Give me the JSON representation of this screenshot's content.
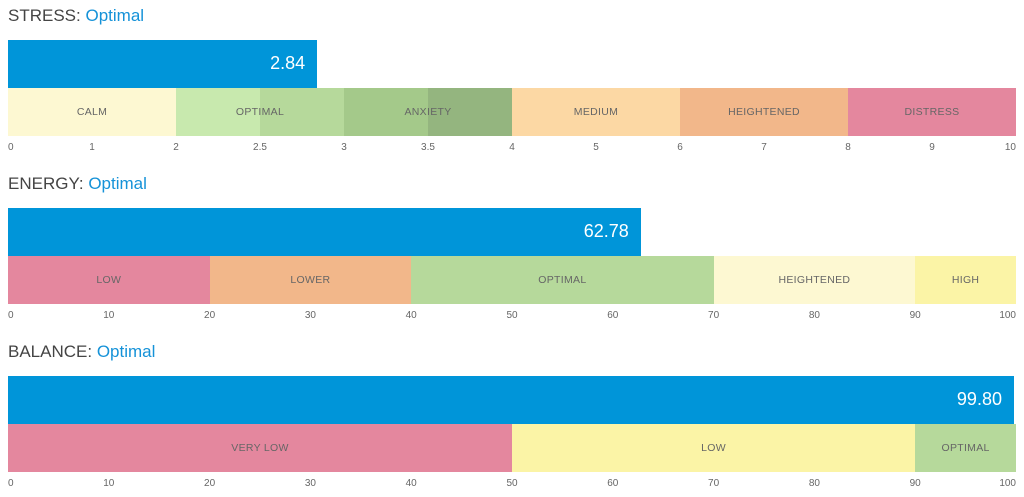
{
  "chart_data": [
    {
      "type": "bar",
      "title": "STRESS",
      "status": "Optimal",
      "value": 2.84,
      "value_label": "2.84",
      "axis_type": "piecewise-linear",
      "ticks": [
        {
          "v": 0,
          "label": "0"
        },
        {
          "v": 1,
          "label": "1"
        },
        {
          "v": 2,
          "label": "2"
        },
        {
          "v": 2.5,
          "label": "2.5"
        },
        {
          "v": 3,
          "label": "3"
        },
        {
          "v": 3.5,
          "label": "3.5"
        },
        {
          "v": 4,
          "label": "4"
        },
        {
          "v": 5,
          "label": "5"
        },
        {
          "v": 6,
          "label": "6"
        },
        {
          "v": 7,
          "label": "7"
        },
        {
          "v": 8,
          "label": "8"
        },
        {
          "v": 9,
          "label": "9"
        },
        {
          "v": 10,
          "label": "10"
        }
      ],
      "zones": [
        {
          "label": "CALM",
          "from": 0,
          "to": 2,
          "color": "#fdf8d2"
        },
        {
          "label": "OPTIMAL",
          "from": 2,
          "to": 3,
          "color": "#c8e9ae",
          "color2": "#b6d99b"
        },
        {
          "label": "ANXIETY",
          "from": 3,
          "to": 4,
          "color": "#a4c98a",
          "color2": "#94b57f"
        },
        {
          "label": "MEDIUM",
          "from": 4,
          "to": 6,
          "color": "#fcd8a4"
        },
        {
          "label": "HEIGHTENED",
          "from": 6,
          "to": 8,
          "color": "#f2b78a"
        },
        {
          "label": "DISTRESS",
          "from": 8,
          "to": 10,
          "color": "#e4879e"
        }
      ]
    },
    {
      "type": "bar",
      "title": "ENERGY",
      "status": "Optimal",
      "value": 62.78,
      "value_label": "62.78",
      "axis_type": "linear",
      "ticks": [
        {
          "v": 0,
          "label": "0"
        },
        {
          "v": 10,
          "label": "10"
        },
        {
          "v": 20,
          "label": "20"
        },
        {
          "v": 30,
          "label": "30"
        },
        {
          "v": 40,
          "label": "40"
        },
        {
          "v": 50,
          "label": "50"
        },
        {
          "v": 60,
          "label": "60"
        },
        {
          "v": 70,
          "label": "70"
        },
        {
          "v": 80,
          "label": "80"
        },
        {
          "v": 90,
          "label": "90"
        },
        {
          "v": 100,
          "label": "100"
        }
      ],
      "zones": [
        {
          "label": "LOW",
          "from": 0,
          "to": 20,
          "color": "#e4879e"
        },
        {
          "label": "LOWER",
          "from": 20,
          "to": 40,
          "color": "#f2b78a"
        },
        {
          "label": "OPTIMAL",
          "from": 40,
          "to": 70,
          "color": "#b6d99b"
        },
        {
          "label": "HEIGHTENED",
          "from": 70,
          "to": 90,
          "color": "#fdf8d2"
        },
        {
          "label": "HIGH",
          "from": 90,
          "to": 100,
          "color": "#fbf4a6"
        }
      ]
    },
    {
      "type": "bar",
      "title": "BALANCE",
      "status": "Optimal",
      "value": 99.8,
      "value_label": "99.80",
      "axis_type": "linear",
      "ticks": [
        {
          "v": 0,
          "label": "0"
        },
        {
          "v": 10,
          "label": "10"
        },
        {
          "v": 20,
          "label": "20"
        },
        {
          "v": 30,
          "label": "30"
        },
        {
          "v": 40,
          "label": "40"
        },
        {
          "v": 50,
          "label": "50"
        },
        {
          "v": 60,
          "label": "60"
        },
        {
          "v": 70,
          "label": "70"
        },
        {
          "v": 80,
          "label": "80"
        },
        {
          "v": 90,
          "label": "90"
        },
        {
          "v": 100,
          "label": "100"
        }
      ],
      "zones": [
        {
          "label": "VERY LOW",
          "from": 0,
          "to": 50,
          "color": "#e4879e"
        },
        {
          "label": "LOW",
          "from": 50,
          "to": 90,
          "color": "#fbf4a6"
        },
        {
          "label": "OPTIMAL",
          "from": 90,
          "to": 100,
          "color": "#b6d99b"
        }
      ]
    }
  ]
}
